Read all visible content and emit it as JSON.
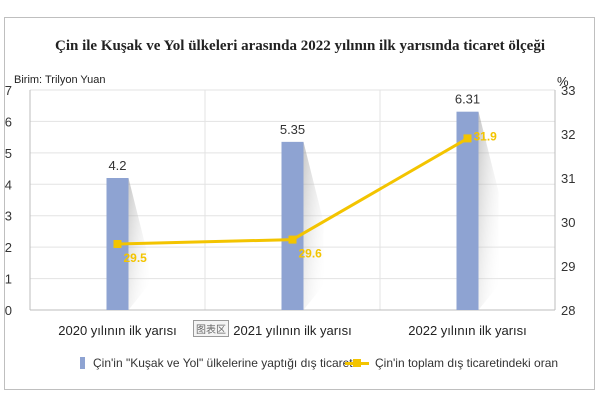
{
  "title": "Çin ile Kuşak ve Yol ülkeleri arasında 2022 yılının ilk yarısında ticaret ölçeği",
  "unit_label": "Birim: Trilyon Yuan",
  "right_axis_unit": "%",
  "watermark": "图表区",
  "colors": {
    "bar": "#8ea3d2",
    "line": "#f3c400"
  },
  "chart_data": {
    "type": "bar+line",
    "categories": [
      "2020 yılının ilk yarısı",
      "2021 yılının ilk yarısı",
      "2022 yılının ilk yarısı"
    ],
    "series": [
      {
        "name": "Çin'in \"Kuşak ve Yol\" ülkelerine yaptığı dış ticaret",
        "type": "bar",
        "axis": "left",
        "values": [
          4.2,
          5.35,
          6.31
        ]
      },
      {
        "name": "Çin'in toplam dış ticaretindeki oran",
        "type": "line",
        "axis": "right",
        "values": [
          29.5,
          29.6,
          31.9
        ]
      }
    ],
    "left_axis": {
      "min": 0,
      "max": 7,
      "ticks": [
        0,
        1,
        2,
        3,
        4,
        5,
        6,
        7
      ]
    },
    "right_axis": {
      "min": 28,
      "max": 33,
      "ticks": [
        28,
        29,
        30,
        31,
        32,
        33
      ]
    },
    "grid": true,
    "legend_position": "bottom"
  }
}
